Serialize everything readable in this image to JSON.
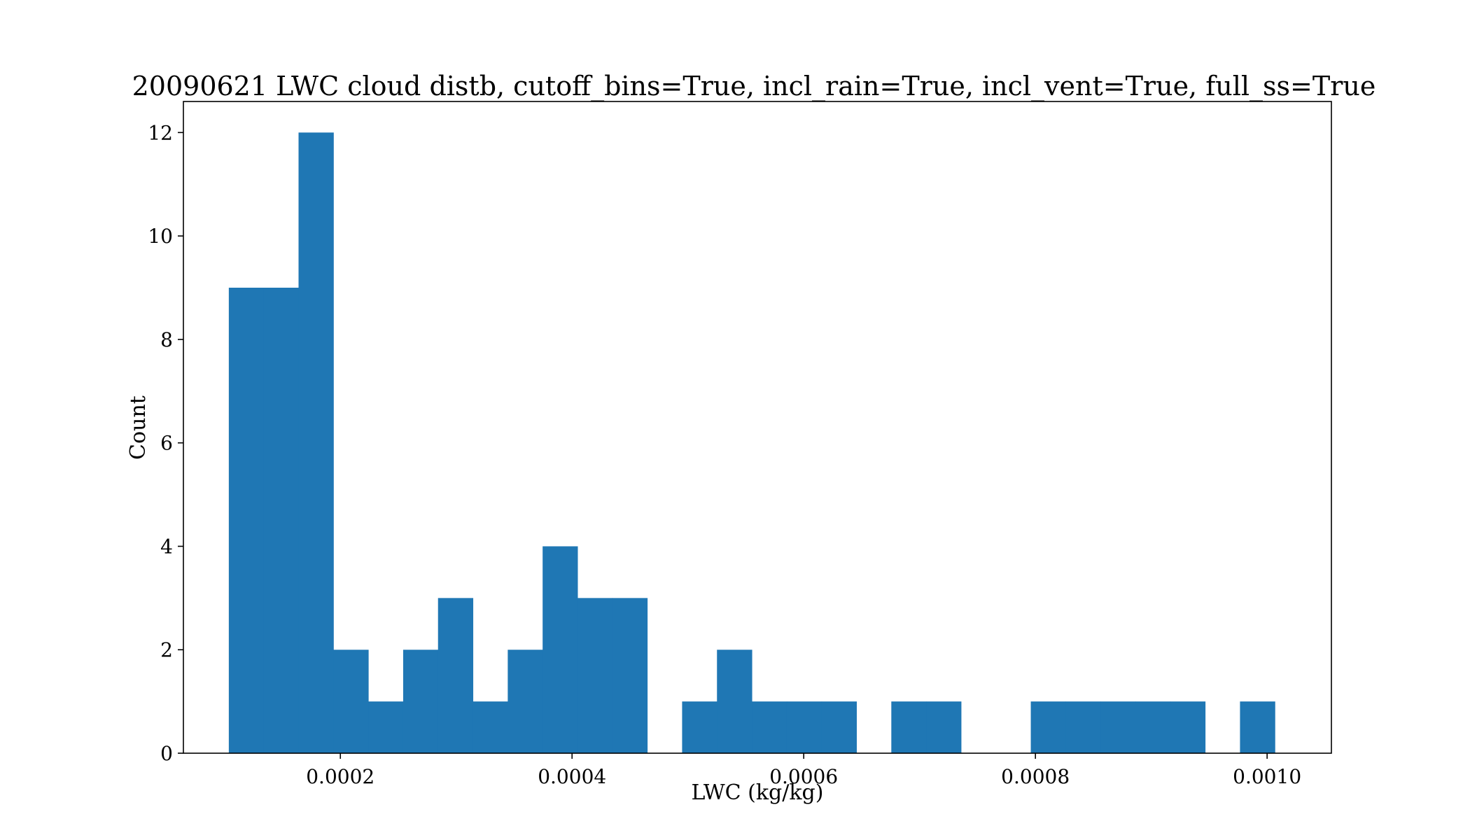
{
  "chart_data": {
    "type": "bar",
    "title": "20090621 LWC cloud distb, cutoff_bins=True, incl_rain=True, incl_vent=True, full_ss=True",
    "xlabel": "LWC (kg/kg)",
    "ylabel": "Count",
    "xlim": [
      6.45e-05,
      0.0010555
    ],
    "ylim": [
      0,
      12.6
    ],
    "xticks": [
      0.0002,
      0.0004,
      0.0006,
      0.0008,
      0.001
    ],
    "xtick_labels": [
      "0.0002",
      "0.0004",
      "0.0006",
      "0.0008",
      "0.0010"
    ],
    "yticks": [
      0,
      2,
      4,
      6,
      8,
      10,
      12
    ],
    "ytick_labels": [
      "0",
      "2",
      "4",
      "6",
      "8",
      "10",
      "12"
    ],
    "grid": false,
    "color": "#1f77b4",
    "bins": [
      {
        "x0": 0.0001037,
        "x1": 0.0001338,
        "count": 9
      },
      {
        "x0": 0.0001338,
        "x1": 0.0001639,
        "count": 9
      },
      {
        "x0": 0.0001639,
        "x1": 0.000194,
        "count": 12
      },
      {
        "x0": 0.000194,
        "x1": 0.0002241,
        "count": 2
      },
      {
        "x0": 0.0002241,
        "x1": 0.0002542,
        "count": 1
      },
      {
        "x0": 0.0002542,
        "x1": 0.0002843,
        "count": 2
      },
      {
        "x0": 0.0002843,
        "x1": 0.0003144,
        "count": 3
      },
      {
        "x0": 0.0003144,
        "x1": 0.0003445,
        "count": 1
      },
      {
        "x0": 0.0003445,
        "x1": 0.0003746,
        "count": 2
      },
      {
        "x0": 0.0003746,
        "x1": 0.0004047,
        "count": 4
      },
      {
        "x0": 0.0004047,
        "x1": 0.0004348,
        "count": 3
      },
      {
        "x0": 0.0004348,
        "x1": 0.0004649,
        "count": 3
      },
      {
        "x0": 0.0004649,
        "x1": 0.000495,
        "count": 0
      },
      {
        "x0": 0.000495,
        "x1": 0.0005251,
        "count": 1
      },
      {
        "x0": 0.0005251,
        "x1": 0.0005552,
        "count": 2
      },
      {
        "x0": 0.0005552,
        "x1": 0.0005853,
        "count": 1
      },
      {
        "x0": 0.0005853,
        "x1": 0.0006154,
        "count": 1
      },
      {
        "x0": 0.0006154,
        "x1": 0.0006455,
        "count": 1
      },
      {
        "x0": 0.0006455,
        "x1": 0.0006756,
        "count": 0
      },
      {
        "x0": 0.0006756,
        "x1": 0.0007057,
        "count": 1
      },
      {
        "x0": 0.0007057,
        "x1": 0.0007358,
        "count": 1
      },
      {
        "x0": 0.0007358,
        "x1": 0.0007659,
        "count": 0
      },
      {
        "x0": 0.0007659,
        "x1": 0.000796,
        "count": 0
      },
      {
        "x0": 0.000796,
        "x1": 0.0008261,
        "count": 1
      },
      {
        "x0": 0.0008261,
        "x1": 0.0008562,
        "count": 1
      },
      {
        "x0": 0.0008562,
        "x1": 0.0008863,
        "count": 1
      },
      {
        "x0": 0.0008863,
        "x1": 0.0009164,
        "count": 1
      },
      {
        "x0": 0.0009164,
        "x1": 0.0009465,
        "count": 1
      },
      {
        "x0": 0.0009465,
        "x1": 0.0009766,
        "count": 0
      },
      {
        "x0": 0.0009766,
        "x1": 0.0010067,
        "count": 1
      }
    ]
  }
}
